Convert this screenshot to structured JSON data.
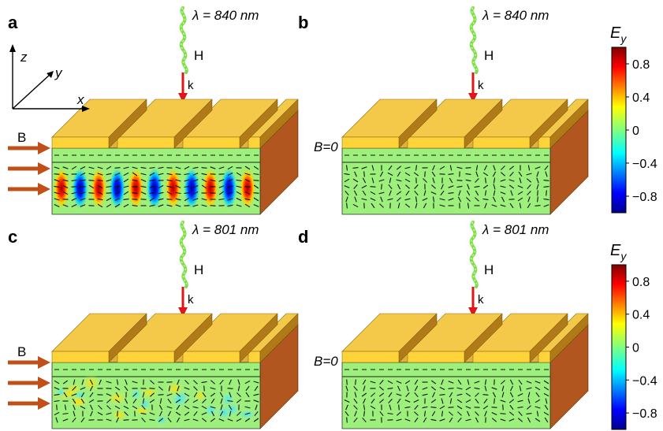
{
  "panels": [
    {
      "id": "a",
      "letter": "a",
      "wavelength": "λ = 840 nm",
      "h_label": "H",
      "k_label": "k",
      "b_label": "B",
      "field": "strong"
    },
    {
      "id": "b",
      "letter": "b",
      "wavelength": "λ = 840 nm",
      "h_label": "H",
      "k_label": "k",
      "b_label": "B=0",
      "field": "noise"
    },
    {
      "id": "c",
      "letter": "c",
      "wavelength": "λ = 801 nm",
      "h_label": "H",
      "k_label": "k",
      "b_label": "B",
      "field": "weak"
    },
    {
      "id": "d",
      "letter": "d",
      "wavelength": "λ = 801 nm",
      "h_label": "H",
      "k_label": "k",
      "b_label": "B=0",
      "field": "noise"
    }
  ],
  "axes": {
    "z": "z",
    "y": "y",
    "x": "x"
  },
  "colorbars": [
    {
      "title": "Ey",
      "ticks": [
        "0.8",
        "0.4",
        "0",
        "−0.4",
        "−0.8"
      ],
      "tick_values": [
        0.8,
        0.4,
        0,
        -0.4,
        -0.8
      ],
      "range": [
        -1,
        1
      ]
    },
    {
      "title": "Ey",
      "ticks": [
        "0.8",
        "0.4",
        "0",
        "−0.4",
        "−0.8"
      ],
      "tick_values": [
        0.8,
        0.4,
        0,
        -0.4,
        -0.8
      ],
      "range": [
        -1,
        1
      ]
    }
  ],
  "colors": {
    "gold_top": "#f4c94a",
    "gold_front": "#ffd43a",
    "gold_side": "#b07a18",
    "substrate_side": "#b0561e",
    "layer": "#9ef07c",
    "arrow_b": "#c05018",
    "arrow_k": "#dd1818",
    "wave": "#7ce040"
  }
}
